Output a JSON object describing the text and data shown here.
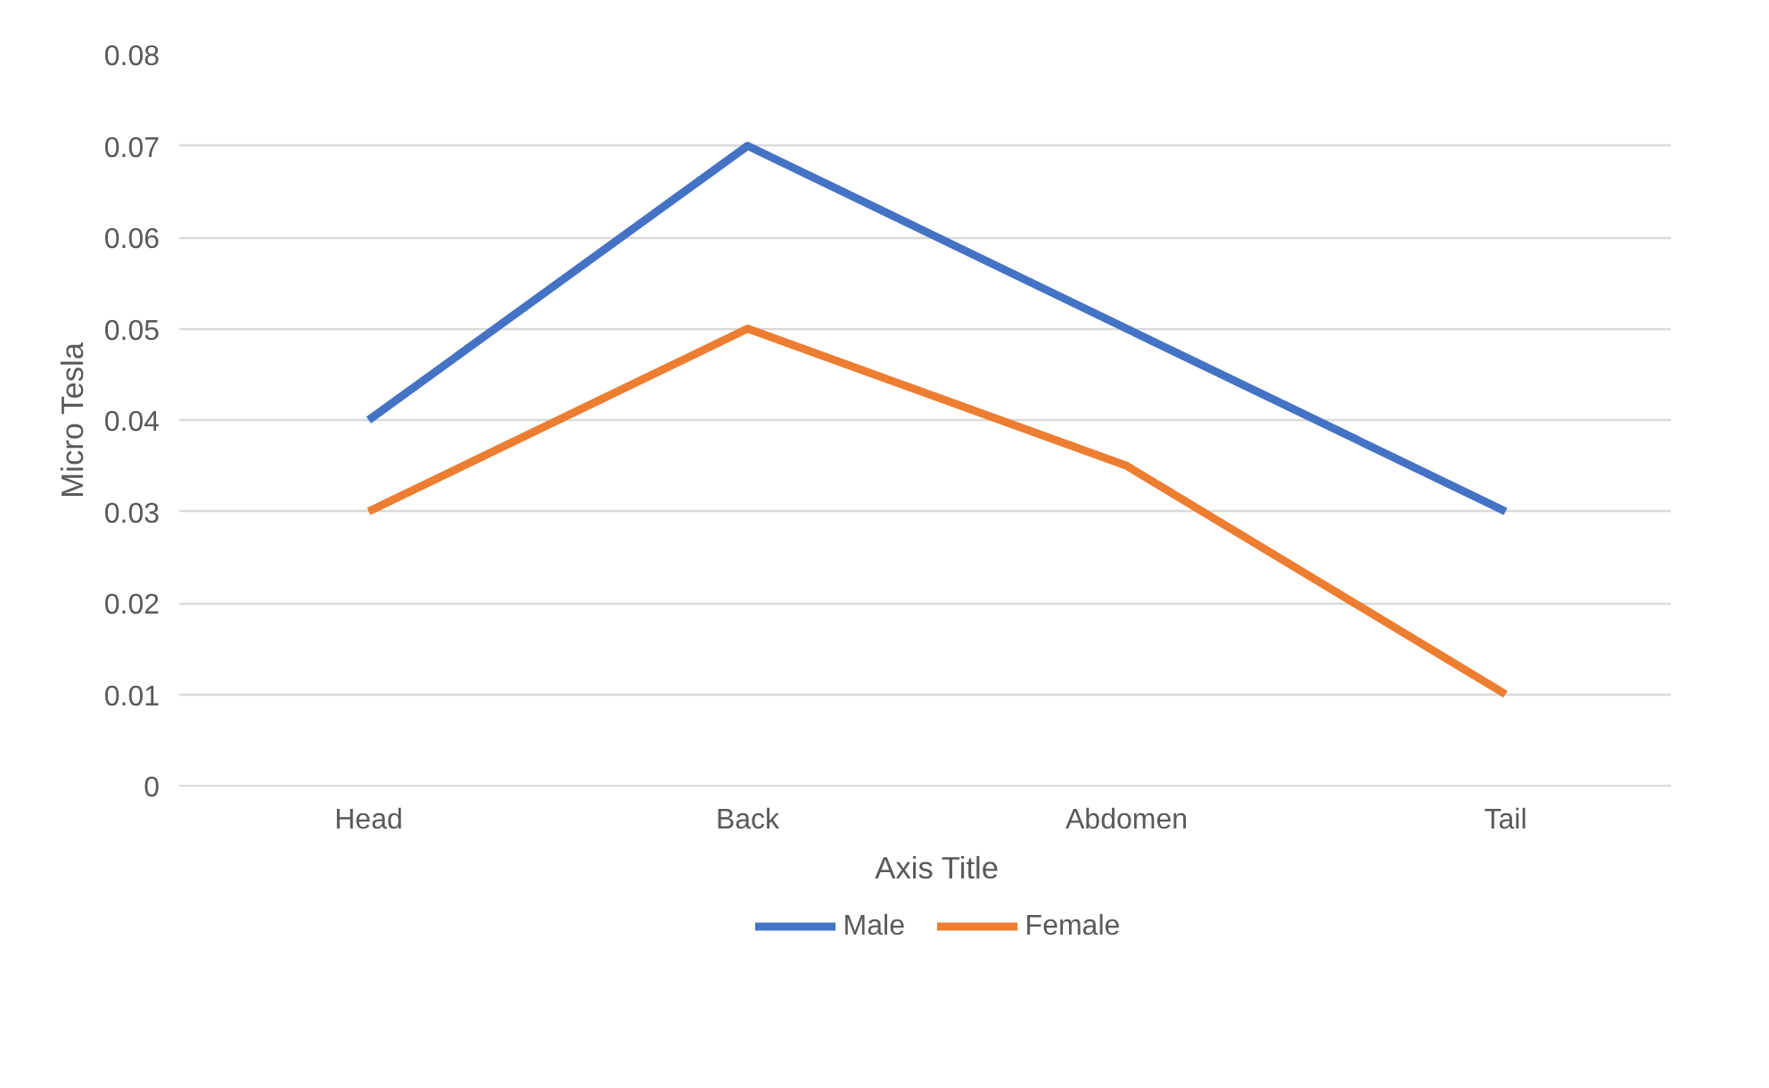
{
  "chart_data": {
    "type": "line",
    "xlabel": "Axis Title",
    "ylabel": "Micro Tesla",
    "categories": [
      "Head",
      "Back",
      "Abdomen",
      "Tail"
    ],
    "series": [
      {
        "name": "Male",
        "color": "#4472c4",
        "values": [
          0.04,
          0.07,
          0.05,
          0.03
        ]
      },
      {
        "name": "Female",
        "color": "#ed7d31",
        "values": [
          0.03,
          0.05,
          0.035,
          0.01
        ]
      }
    ],
    "ylim": [
      0,
      0.08
    ],
    "yticks": [
      0,
      0.01,
      0.02,
      0.03,
      0.04,
      0.05,
      0.06,
      0.07,
      0.08
    ],
    "grid": "y",
    "legend": "bottom",
    "marker": "none",
    "line_style": "solid"
  }
}
